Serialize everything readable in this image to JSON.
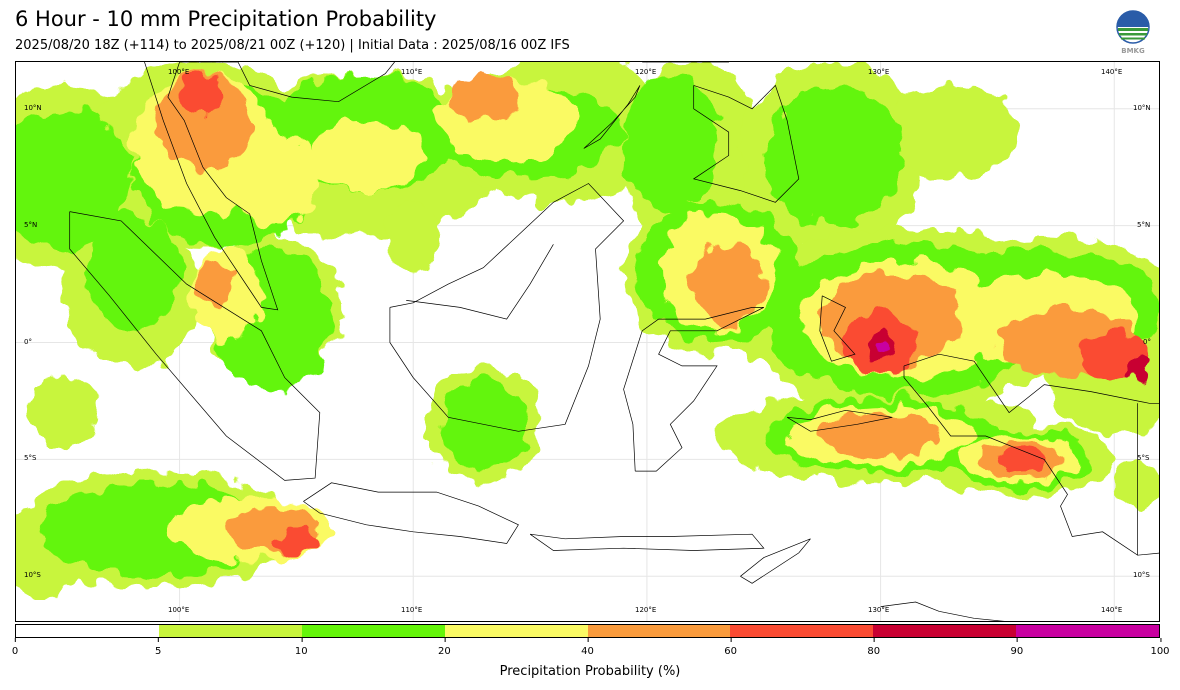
{
  "title": "6 Hour - 10 mm Precipitation Probability",
  "subtitle": "2025/08/20 18Z (+114) to 2025/08/21 00Z (+120) | Initial Data : 2025/08/16 00Z IFS",
  "logo_text": "BMKG",
  "map": {
    "lon_labels": [
      "100°E",
      "110°E",
      "120°E",
      "130°E",
      "140°E"
    ],
    "lat_labels": [
      "10°N",
      "5°N",
      "0°",
      "5°S",
      "10°S"
    ],
    "lon_range": [
      93,
      142
    ],
    "lat_range": [
      -12,
      12
    ],
    "gridlines": true
  },
  "colorbar": {
    "label": "Precipitation Probability (%)",
    "ticks": [
      "0",
      "5",
      "10",
      "20",
      "40",
      "60",
      "80",
      "90",
      "100"
    ],
    "colors": [
      "#ffffff",
      "#c8f53c",
      "#64f50a",
      "#fafa64",
      "#fa9b3c",
      "#fa4b32",
      "#c80032",
      "#c800a0"
    ]
  }
}
